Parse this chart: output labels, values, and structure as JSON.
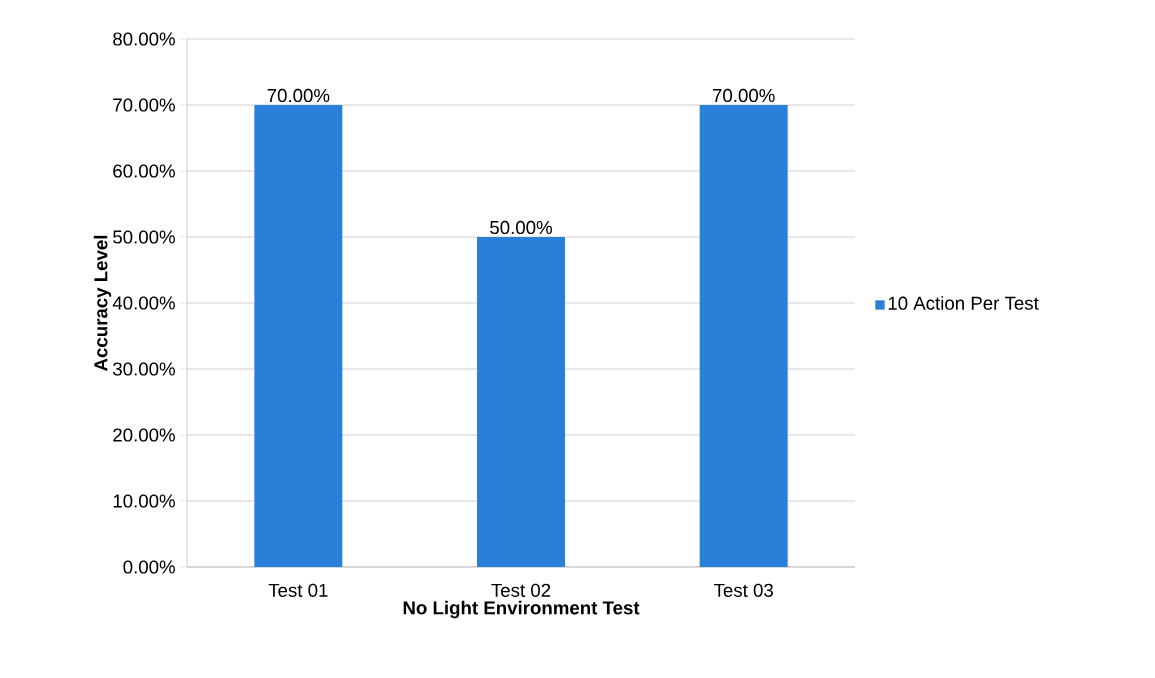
{
  "chart_data": {
    "type": "bar",
    "xlabel": "No Light Environment Test",
    "ylabel": "Accuracy Level",
    "categories": [
      "Test 01",
      "Test 02",
      "Test 03"
    ],
    "series": [
      {
        "name": "10 Action Per Test",
        "color": "#2a7fd8",
        "values": [
          70,
          50,
          70
        ],
        "value_labels": [
          "70.00%",
          "50.00%",
          "70.00%"
        ]
      }
    ],
    "ylim": [
      0,
      80
    ],
    "yticks": [
      {
        "value": 0,
        "label": "0.00%"
      },
      {
        "value": 10,
        "label": "10.00%"
      },
      {
        "value": 20,
        "label": "20.00%"
      },
      {
        "value": 30,
        "label": "30.00%"
      },
      {
        "value": 40,
        "label": "40.00%"
      },
      {
        "value": 50,
        "label": "50.00%"
      },
      {
        "value": 60,
        "label": "60.00%"
      },
      {
        "value": 70,
        "label": "70.00%"
      },
      {
        "value": 80,
        "label": "80.00%"
      }
    ],
    "grid": "y",
    "legend": "right"
  }
}
